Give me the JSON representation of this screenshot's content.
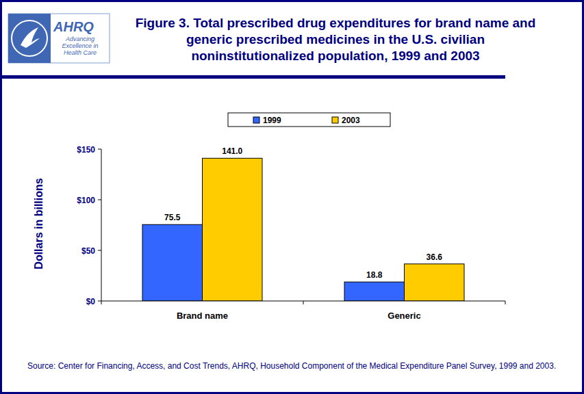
{
  "logo": {
    "name": "AHRQ",
    "tagline": [
      "Advancing",
      "Excellence in",
      "Health Care"
    ]
  },
  "chart_data": {
    "type": "bar",
    "title": "Figure 3. Total prescribed drug expenditures for brand name and generic prescribed medicines in the U.S. civilian noninstitutionalized population, 1999 and 2003",
    "source": "Source: Center for Financing, Access, and Cost Trends, AHRQ, Household Component of the Medical Expenditure Panel Survey, 1999 and 2003.",
    "y_label": "Dollars in billions",
    "categories": [
      "Brand name",
      "Generic"
    ],
    "series": [
      {
        "name": "1999",
        "color": "#3366FF",
        "values": [
          75.5,
          18.8
        ]
      },
      {
        "name": "2003",
        "color": "#FFCC00",
        "values": [
          141.0,
          36.6
        ],
        "value_labels": [
          "141.0",
          "36.6"
        ]
      }
    ],
    "ylim": [
      0,
      150
    ],
    "yticks": [
      {
        "value": 0,
        "label": "$0"
      },
      {
        "value": 50,
        "label": "$50"
      },
      {
        "value": 100,
        "label": "$100"
      },
      {
        "value": 150,
        "label": "$150"
      }
    ],
    "grid": false,
    "legend": "top",
    "data_labels": true
  }
}
